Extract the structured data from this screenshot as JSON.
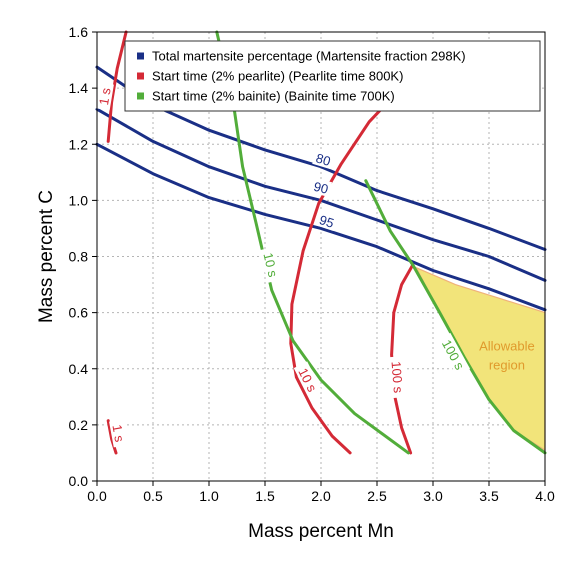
{
  "chart_data": {
    "type": "line",
    "xlabel": "Mass percent Mn",
    "ylabel": "Mass percent C",
    "xlim": [
      0,
      4.0
    ],
    "ylim": [
      0,
      1.6
    ],
    "x_ticks": [
      "0.0",
      "0.5",
      "1.0",
      "1.5",
      "2.0",
      "2.5",
      "3.0",
      "3.5",
      "4.0"
    ],
    "y_ticks": [
      "0.0",
      "0.2",
      "0.4",
      "0.6",
      "0.8",
      "1.0",
      "1.2",
      "1.4",
      "1.6"
    ],
    "grid": true,
    "legend_position": "top-right",
    "legend": [
      {
        "label": "Total martensite percentage (Martensite fraction 298K)",
        "color": "#1a2f86"
      },
      {
        "label": "Start time (2% pearlite) (Pearlite time 800K)",
        "color": "#d42a36"
      },
      {
        "label": "Start time (2% bainite) (Bainite time 700K)",
        "color": "#52ad3a"
      }
    ],
    "series": [
      {
        "group": "martensite",
        "name": "80",
        "color": "#1a2f86",
        "label_at": [
          2.02,
          1.145
        ],
        "points": [
          [
            0,
            1.475
          ],
          [
            0.5,
            1.34
          ],
          [
            1.0,
            1.25
          ],
          [
            1.5,
            1.18
          ],
          [
            2.0,
            1.12
          ],
          [
            2.5,
            1.035
          ],
          [
            3.0,
            0.97
          ],
          [
            3.5,
            0.9
          ],
          [
            4.0,
            0.825
          ]
        ]
      },
      {
        "group": "martensite",
        "name": "90",
        "color": "#1a2f86",
        "label_at": [
          2.0,
          1.045
        ],
        "points": [
          [
            0,
            1.325
          ],
          [
            0.5,
            1.21
          ],
          [
            1.0,
            1.12
          ],
          [
            1.5,
            1.05
          ],
          [
            2.0,
            1.0
          ],
          [
            2.5,
            0.93
          ],
          [
            3.0,
            0.86
          ],
          [
            3.5,
            0.8
          ],
          [
            4.0,
            0.715
          ]
        ]
      },
      {
        "group": "martensite",
        "name": "95",
        "color": "#1a2f86",
        "label_at": [
          2.05,
          0.925
        ],
        "points": [
          [
            0,
            1.2
          ],
          [
            0.5,
            1.095
          ],
          [
            1.0,
            1.01
          ],
          [
            1.5,
            0.95
          ],
          [
            2.0,
            0.9
          ],
          [
            2.5,
            0.835
          ],
          [
            3.0,
            0.75
          ],
          [
            3.5,
            0.685
          ],
          [
            4.0,
            0.61
          ]
        ]
      },
      {
        "group": "pearlite",
        "name": "1 s",
        "color": "#d42a36",
        "label_at": [
          0.07,
          1.37
        ],
        "points": [
          [
            0.1,
            1.21
          ],
          [
            0.13,
            1.35
          ],
          [
            0.18,
            1.47
          ],
          [
            0.26,
            1.6
          ]
        ]
      },
      {
        "group": "pearlite",
        "name": "1 s",
        "color": "#d42a36",
        "label_at": [
          0.19,
          0.17
        ],
        "points": [
          [
            0.1,
            0.215
          ],
          [
            0.13,
            0.15
          ],
          [
            0.17,
            0.1
          ]
        ]
      },
      {
        "group": "pearlite",
        "name": "10 s",
        "color": "#d42a36",
        "label_at": [
          1.88,
          0.36
        ],
        "points": [
          [
            2.26,
            0.1
          ],
          [
            2.1,
            0.16
          ],
          [
            1.92,
            0.26
          ],
          [
            1.78,
            0.37
          ],
          [
            1.73,
            0.49
          ],
          [
            1.74,
            0.63
          ],
          [
            1.84,
            0.82
          ],
          [
            1.98,
            0.99
          ],
          [
            2.18,
            1.13
          ],
          [
            2.43,
            1.28
          ],
          [
            2.62,
            1.36
          ]
        ]
      },
      {
        "group": "pearlite",
        "name": "100 s",
        "color": "#d42a36",
        "label_at": [
          2.68,
          0.37
        ],
        "points": [
          [
            2.8,
            0.1
          ],
          [
            2.72,
            0.19
          ],
          [
            2.66,
            0.3
          ],
          [
            2.63,
            0.45
          ],
          [
            2.65,
            0.6
          ],
          [
            2.72,
            0.7
          ],
          [
            2.82,
            0.77
          ]
        ]
      },
      {
        "group": "bainite",
        "name": "10 s",
        "color": "#52ad3a",
        "label_at": [
          1.55,
          0.77
        ],
        "points": [
          [
            1.07,
            1.6
          ],
          [
            1.22,
            1.34
          ],
          [
            1.3,
            1.12
          ],
          [
            1.42,
            0.92
          ],
          [
            1.56,
            0.68
          ],
          [
            1.75,
            0.5
          ],
          [
            2.0,
            0.36
          ],
          [
            2.3,
            0.24
          ],
          [
            2.78,
            0.1
          ]
        ]
      },
      {
        "group": "bainite",
        "name": "100 s",
        "color": "#52ad3a",
        "label_at": [
          3.18,
          0.45
        ],
        "points": [
          [
            2.4,
            1.07
          ],
          [
            2.62,
            0.89
          ],
          [
            2.82,
            0.77
          ],
          [
            3.06,
            0.6
          ],
          [
            3.28,
            0.44
          ],
          [
            3.5,
            0.29
          ],
          [
            3.72,
            0.18
          ],
          [
            4.0,
            0.1
          ]
        ]
      }
    ],
    "region": {
      "label_lines": [
        "Allowable",
        "region"
      ],
      "color": "#f2e47a",
      "label_color": "#e09a2c",
      "label_at": [
        3.66,
        0.465
      ],
      "points": [
        [
          2.85,
          0.76
        ],
        [
          3.2,
          0.7
        ],
        [
          3.6,
          0.65
        ],
        [
          4.0,
          0.6
        ],
        [
          4.0,
          0.11
        ],
        [
          3.72,
          0.18
        ],
        [
          3.5,
          0.29
        ],
        [
          3.28,
          0.44
        ],
        [
          3.06,
          0.6
        ]
      ]
    }
  }
}
